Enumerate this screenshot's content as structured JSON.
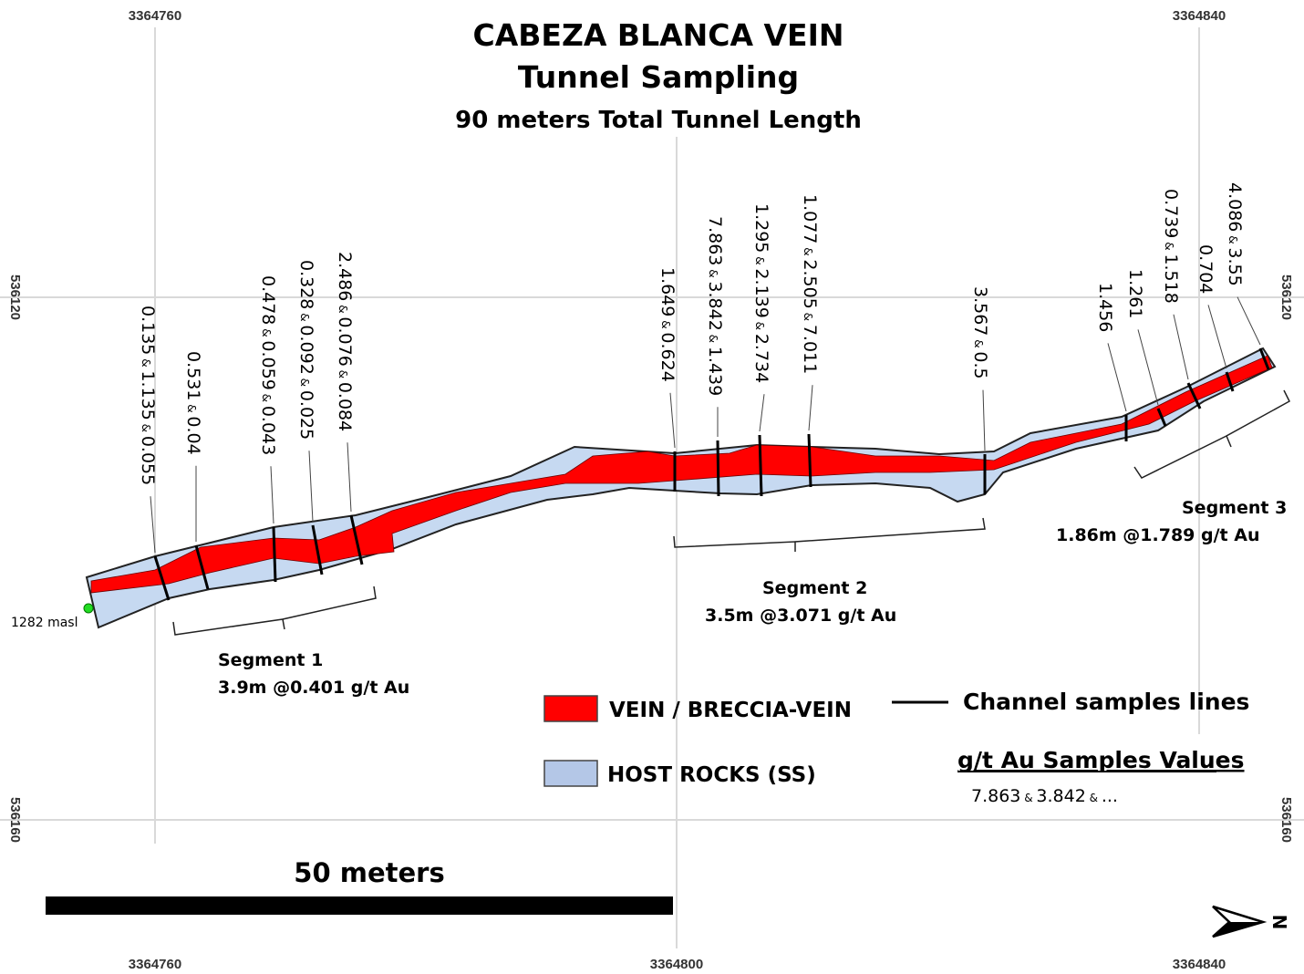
{
  "title": {
    "line1": "CABEZA BLANCA VEIN",
    "line2": "Tunnel Sampling",
    "line3": "90 meters Total Tunnel Length"
  },
  "coordinates": {
    "top": [
      "3364760",
      "3364840"
    ],
    "bottom": [
      "3364760",
      "3364800",
      "3364840"
    ],
    "left": [
      "536120",
      "536160"
    ],
    "right": [
      "536120",
      "536160"
    ]
  },
  "elevation_label": "1282 masl",
  "samples": [
    "0.135 & 1.135 & 0.055",
    "0.531 & 0.04",
    "0.478 & 0.059 & 0.043",
    "0.328 & 0.092 & 0.025",
    "2.486 & 0.076 & 0.084",
    "1.649 & 0.624",
    "7.863 & 3.842 & 1.439",
    "1.295 & 2.139 & 2.734",
    "1.077 & 2.505 & 7.011",
    "3.567 & 0.5",
    "1.456",
    "1.261",
    "0.739 & 1.518",
    "0.704",
    "4.086 & 3.55"
  ],
  "segments": [
    {
      "name": "Segment 1",
      "result": "3.9m @0.401 g/t Au"
    },
    {
      "name": "Segment 2",
      "result": "3.5m @3.071 g/t Au"
    },
    {
      "name": "Segment 3",
      "result": "1.86m @1.789 g/t Au"
    }
  ],
  "legend": {
    "vein": "VEIN / BRECCIA-VEIN",
    "host": "HOST ROCKS (SS)",
    "channel": "Channel samples lines",
    "values_title": "g/t Au Samples Values",
    "values_example": "7.863 & 3.842 & ..."
  },
  "scale_bar": "50 meters",
  "north": "N",
  "colors": {
    "vein": "#ff0000",
    "host": "#c6d9f1",
    "host_legend": "#b4c7e7"
  }
}
